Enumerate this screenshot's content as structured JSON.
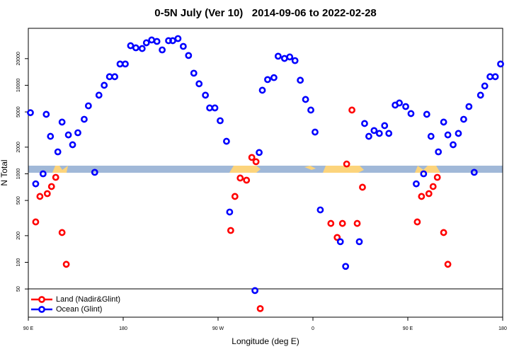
{
  "chart_data": {
    "type": "scatter",
    "title": "0-5N July (Ver 10)   2014-09-06 to 2022-02-28",
    "x_label": "Longitude (deg E)",
    "y_label": "N Total",
    "xlim": [
      90,
      540
    ],
    "xticks": [
      {
        "value": 90,
        "label": "90 E"
      },
      180,
      {
        "value": 270,
        "label": "90 W"
      },
      {
        "value": 360,
        "label": "0"
      },
      {
        "value": 450,
        "label": "90 E"
      },
      {
        "value": 540,
        "label": "180"
      }
    ],
    "ylim": [
      24,
      44000
    ],
    "yticks": [
      50,
      100,
      200,
      500,
      1000,
      2000,
      5000,
      10000,
      20000
    ],
    "y_scale": "log",
    "legend": "lower left",
    "series": [
      {
        "name": "Land (Nadir&Glint)",
        "color": "#ff0000",
        "x": [
          97,
          101,
          108,
          112,
          116,
          122,
          126,
          282,
          286,
          291,
          297,
          302,
          306,
          310,
          377,
          383,
          388,
          392,
          397,
          402,
          407,
          459,
          463,
          470,
          474,
          478,
          484,
          488
        ],
        "values": [
          286,
          555,
          597,
          718,
          912,
          217,
          95,
          229,
          555,
          896,
          847,
          1530,
          1370,
          30,
          275,
          191,
          275,
          1290,
          5250,
          275,
          705,
          286,
          555,
          597,
          718,
          912,
          217,
          95
        ]
      },
      {
        "name": "Ocean (Glint)",
        "color": "#0000ff",
        "x": [
          92,
          97,
          104,
          107,
          111,
          118,
          122,
          128,
          132,
          137,
          143,
          147,
          153,
          157,
          162,
          167,
          172,
          177,
          182,
          187,
          192,
          198,
          202,
          207,
          212,
          217,
          223,
          227,
          232,
          237,
          242,
          247,
          252,
          258,
          262,
          267,
          272,
          278,
          281,
          305,
          309,
          312,
          317,
          323,
          327,
          333,
          338,
          343,
          348,
          353,
          358,
          362,
          367,
          386,
          391,
          404,
          409,
          413,
          418,
          423,
          428,
          432,
          438,
          442,
          448,
          453,
          458,
          465,
          468,
          472,
          479,
          484,
          488,
          493,
          498,
          503,
          508,
          513,
          519,
          523,
          528,
          533,
          538
        ],
        "values": [
          4900,
          770,
          1000,
          4700,
          2650,
          1770,
          3840,
          2750,
          2130,
          2910,
          4130,
          5860,
          1040,
          7730,
          10000,
          12500,
          12500,
          17400,
          17400,
          28000,
          26500,
          26000,
          30200,
          32500,
          31300,
          25100,
          31900,
          31900,
          33700,
          27500,
          21700,
          13700,
          10400,
          7730,
          5550,
          5550,
          3980,
          2330,
          370,
          48,
          1740,
          8790,
          11600,
          12200,
          21300,
          20100,
          20900,
          19000,
          11400,
          6920,
          5250,
          2960,
          391,
          171,
          90,
          171,
          3700,
          2650,
          3080,
          2860,
          3500,
          2860,
          5970,
          6310,
          5750,
          4790,
          770,
          1000,
          4700,
          2650,
          1770,
          3840,
          2750,
          2130,
          2860,
          4130,
          5750,
          1040,
          7730,
          9820,
          12500,
          12500,
          17400
        ]
      }
    ]
  }
}
